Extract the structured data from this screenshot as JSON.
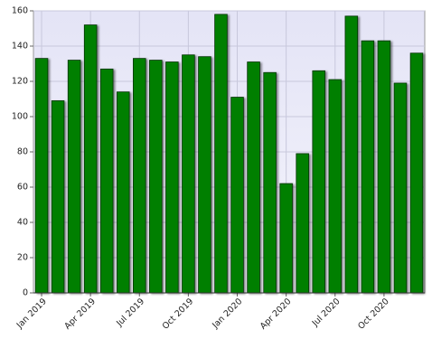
{
  "chart_data": {
    "type": "bar",
    "categories": [
      "Jan 2019",
      null,
      null,
      "Apr 2019",
      null,
      null,
      "Jul 2019",
      null,
      null,
      "Oct 2019",
      null,
      null,
      "Jan 2020",
      null,
      null,
      "Apr 2020",
      null,
      null,
      "Jul 2020",
      null,
      null,
      "Oct 2020",
      null,
      null
    ],
    "values": [
      133,
      109,
      132,
      152,
      127,
      114,
      133,
      132,
      131,
      135,
      134,
      158,
      111,
      131,
      125,
      62,
      79,
      126,
      121,
      157,
      143,
      143,
      119,
      136
    ],
    "color": "#007f00",
    "ylim": [
      0,
      160
    ],
    "yticks": [
      0,
      20,
      40,
      60,
      80,
      100,
      120,
      140,
      160
    ],
    "grid": true
  }
}
